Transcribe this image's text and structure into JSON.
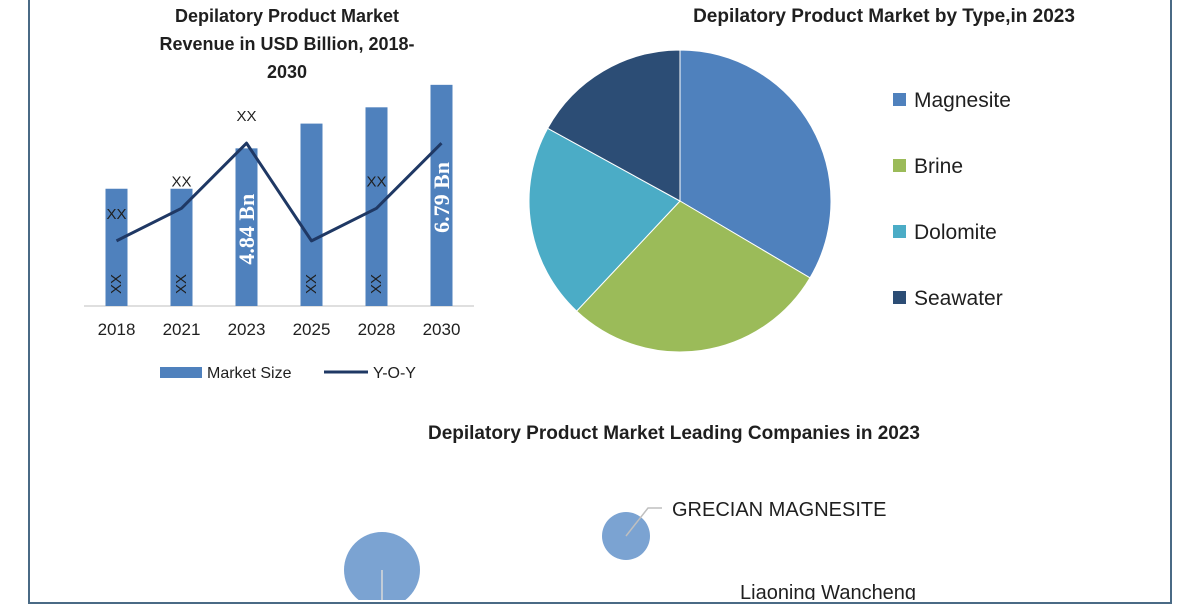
{
  "chart_data": [
    {
      "type": "bar",
      "title_lines": [
        "Depilatory Product Market",
        "Revenue in USD Billion, 2018-",
        "2030"
      ],
      "categories": [
        "2018",
        "2021",
        "2023",
        "2025",
        "2028",
        "2030"
      ],
      "series": [
        {
          "name": "Market Size",
          "kind": "bar",
          "values": [
            3.6,
            3.6,
            4.84,
            5.6,
            6.1,
            6.79
          ],
          "labels": [
            "XX",
            "XX",
            "4.84 Bn",
            "XX",
            "XX",
            "6.79 Bn"
          ]
        },
        {
          "name": "Y-O-Y",
          "kind": "line",
          "values": [
            2.0,
            3.0,
            5.0,
            2.0,
            3.0,
            5.0
          ],
          "labels": [
            "XX",
            "XX",
            "XX",
            "",
            "XX",
            ""
          ]
        }
      ],
      "bar_label_inside": [
        "XX",
        "XX",
        "4.84 Bn",
        "XX",
        "XX",
        "6.79 Bn"
      ],
      "ylim": [
        0,
        7.0
      ],
      "colors": {
        "bar": "#4f81bd",
        "line": "#1f3864"
      },
      "legend_position": "bottom"
    },
    {
      "type": "pie",
      "title": "Depilatory Product Market by Type,in 2023",
      "labels": [
        "Magnesite",
        "Brine",
        "Dolomite",
        "Seawater"
      ],
      "values": [
        33.5,
        28.5,
        21.0,
        17.0
      ],
      "colors": [
        "#4f81bd",
        "#9bbb59",
        "#4bacc6",
        "#2c4d75"
      ],
      "legend_position": "right"
    },
    {
      "type": "bubble",
      "title": "Depilatory Product Market Leading Companies in 2023",
      "items": [
        {
          "label": "",
          "size": 38
        },
        {
          "label": "GRECIAN MAGNESITE",
          "size": 24
        },
        {
          "label": "Liaoning Wancheng",
          "size": 0
        }
      ],
      "color": "#7ba3d2"
    }
  ]
}
